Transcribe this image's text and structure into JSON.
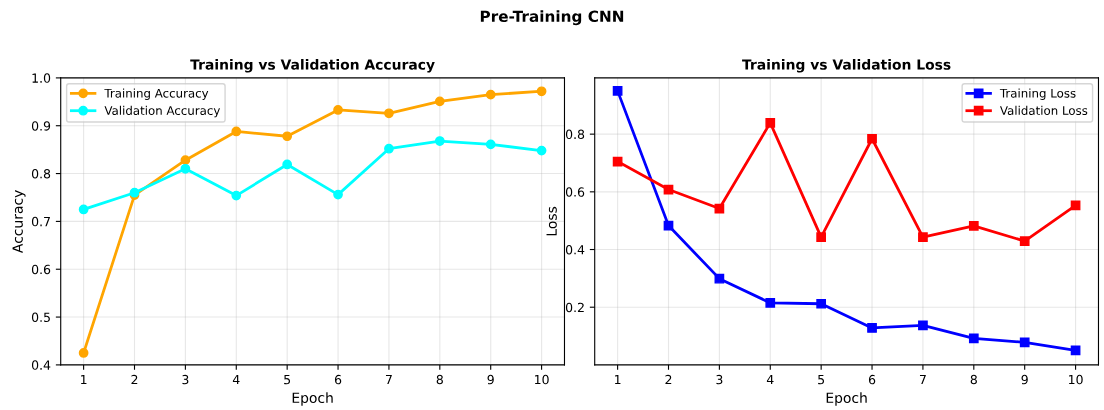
{
  "chart_data": [
    {
      "type": "line",
      "title": "Training vs Validation Accuracy",
      "xlabel": "Epoch",
      "ylabel": "Accuracy",
      "annotations": [
        "Pre-Training CNN"
      ],
      "x": [
        1,
        2,
        3,
        4,
        5,
        6,
        7,
        8,
        9,
        10
      ],
      "xlim": [
        0.55,
        10.45
      ],
      "xticks": [
        1,
        2,
        3,
        4,
        5,
        6,
        7,
        8,
        9,
        10
      ],
      "ylim": [
        0.4,
        1.0
      ],
      "yticks": [
        0.4,
        0.5,
        0.6,
        0.7,
        0.8,
        0.9,
        {
          "value": 1,
          "label": "1.0"
        }
      ],
      "grid": true,
      "legend": "top left",
      "marker": "circle",
      "line_style": "solid",
      "series": [
        {
          "name": "Training Accuracy",
          "color": "#ffa500",
          "values": [
            0.425,
            0.755,
            0.828,
            0.888,
            0.878,
            0.933,
            0.926,
            0.951,
            0.965,
            0.972
          ]
        },
        {
          "name": "Validation Accuracy",
          "color": "#00ffff",
          "values": [
            0.725,
            0.76,
            0.81,
            0.754,
            0.819,
            0.756,
            0.852,
            0.868,
            0.861,
            0.848
          ]
        }
      ]
    },
    {
      "type": "line",
      "title": "Training vs Validation Loss",
      "xlabel": "Epoch",
      "ylabel": "Loss",
      "x": [
        1,
        2,
        3,
        4,
        5,
        6,
        7,
        8,
        9,
        10
      ],
      "xlim": [
        0.55,
        10.45
      ],
      "xticks": [
        1,
        2,
        3,
        4,
        5,
        6,
        7,
        8,
        9,
        10
      ],
      "ylim": [
        0.0,
        0.995
      ],
      "yticks": [
        0.2,
        0.4,
        0.6,
        0.8
      ],
      "grid": true,
      "legend": "top right",
      "marker": "square",
      "line_style": "solid",
      "series": [
        {
          "name": "Training Loss",
          "color": "#0000ff",
          "values": [
            0.95,
            0.483,
            0.299,
            0.215,
            0.212,
            0.128,
            0.137,
            0.092,
            0.078,
            0.05
          ]
        },
        {
          "name": "Validation Loss",
          "color": "#ff0000",
          "values": [
            0.705,
            0.608,
            0.542,
            0.839,
            0.443,
            0.784,
            0.443,
            0.482,
            0.429,
            0.553
          ]
        }
      ]
    }
  ]
}
